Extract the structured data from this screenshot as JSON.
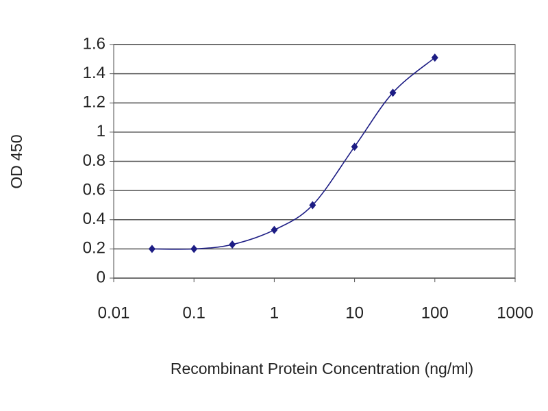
{
  "chart_data": {
    "type": "scatter",
    "x_label": "Recombinant Protein Concentration (ng/ml)",
    "y_label": "OD 450",
    "x": [
      0.03,
      0.1,
      0.3,
      1,
      3,
      10,
      30,
      100
    ],
    "series": [
      {
        "color": "#1c1c84",
        "values": [
          0.2,
          0.2,
          0.23,
          0.33,
          0.5,
          0.9,
          1.27,
          1.51
        ]
      }
    ],
    "xscale": "log",
    "xlim": [
      0.01,
      1000
    ],
    "xticks": [
      0.01,
      0.1,
      1,
      10,
      100,
      1000
    ],
    "ylim": [
      0,
      1.6
    ],
    "yticks": [
      0,
      0.2,
      0.4,
      0.6,
      0.8,
      1,
      1.2,
      1.4,
      1.6
    ],
    "grid": true,
    "smooth_line": true
  }
}
